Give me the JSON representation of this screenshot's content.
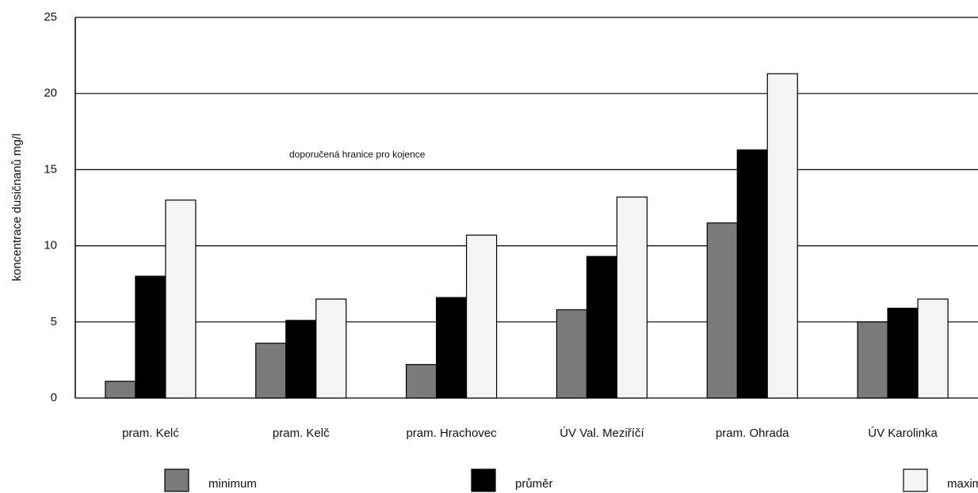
{
  "chart_data": {
    "type": "bar",
    "y_label": "koncentrace dusičnanů mg/l",
    "annotation": "doporučená hranice pro kojence",
    "categories": [
      "pram. Kelć",
      "pram. Kelč",
      "pram. Hrachovec",
      "ÚV Val. Meziříčí",
      "pram. Ohrada",
      "ÚV Karolinka"
    ],
    "series": [
      {
        "name": "minimum",
        "color": "#7a7a7a",
        "values": [
          1.1,
          3.6,
          2.2,
          5.8,
          11.5,
          5.0
        ]
      },
      {
        "name": "průměr",
        "color": "#000000",
        "values": [
          8.0,
          5.1,
          6.6,
          9.3,
          16.3,
          5.9
        ]
      },
      {
        "name": "maximum",
        "color": "#f4f4f4",
        "values": [
          13.0,
          6.5,
          10.7,
          13.2,
          21.3,
          6.5
        ]
      }
    ],
    "ylim": [
      0,
      25
    ],
    "yticks": [
      0,
      5,
      10,
      15,
      20,
      25
    ],
    "grid": true
  }
}
